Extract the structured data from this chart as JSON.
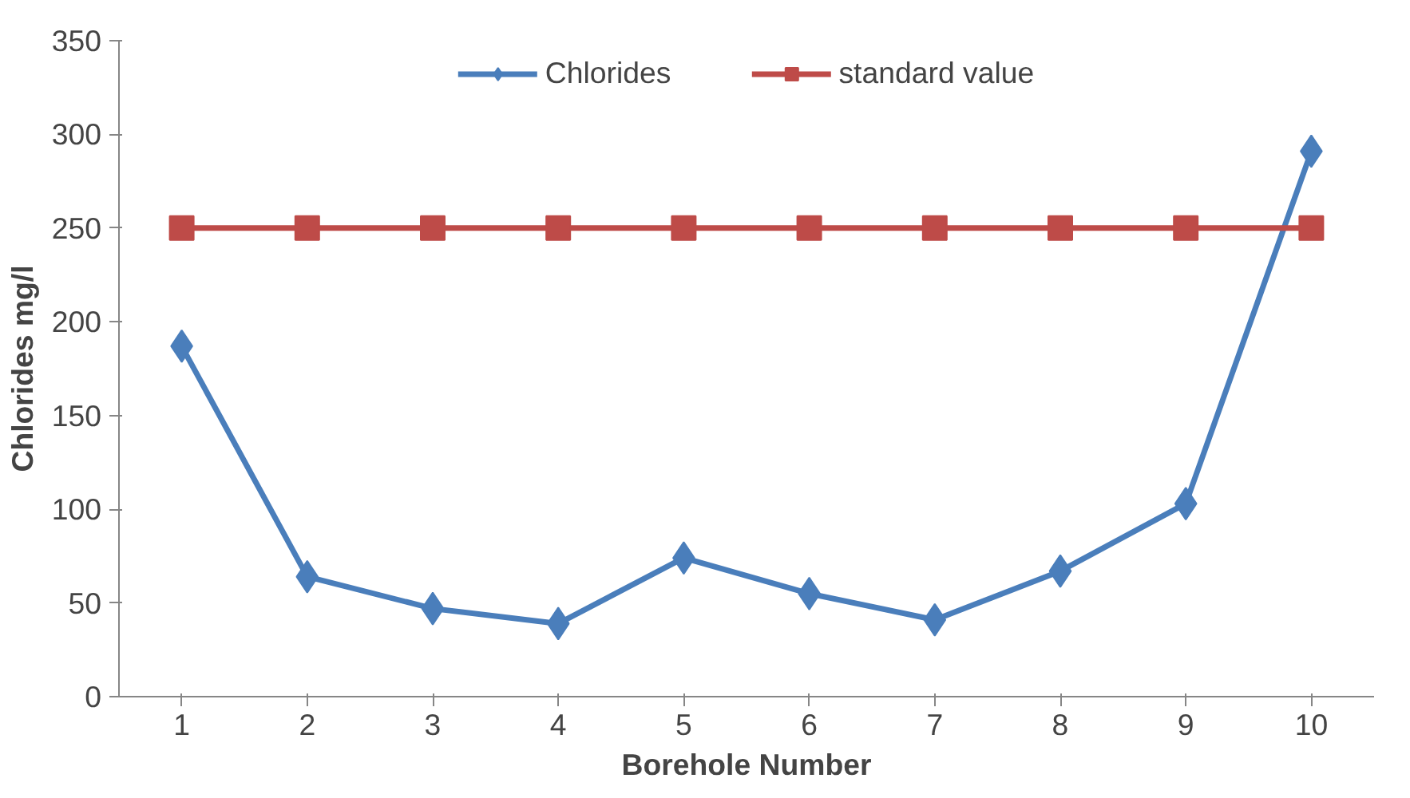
{
  "chart_data": {
    "type": "line",
    "xlabel": "Borehole Number",
    "ylabel": "Chlorides mg/l",
    "categories": [
      "1",
      "2",
      "3",
      "4",
      "5",
      "6",
      "7",
      "8",
      "9",
      "10"
    ],
    "series": [
      {
        "name": "Chlorides",
        "color": "#4a7ebb",
        "marker": "diamond",
        "values": [
          187,
          64,
          47,
          39,
          74,
          55,
          41,
          67,
          103,
          291
        ]
      },
      {
        "name": "standard value",
        "color": "#be4b48",
        "marker": "square",
        "values": [
          250,
          250,
          250,
          250,
          250,
          250,
          250,
          250,
          250,
          250
        ]
      }
    ],
    "ylim": [
      0,
      350
    ],
    "yticks": [
      0,
      50,
      100,
      150,
      200,
      250,
      300,
      350
    ],
    "grid": false,
    "legend": "top",
    "line_style": "solid"
  }
}
